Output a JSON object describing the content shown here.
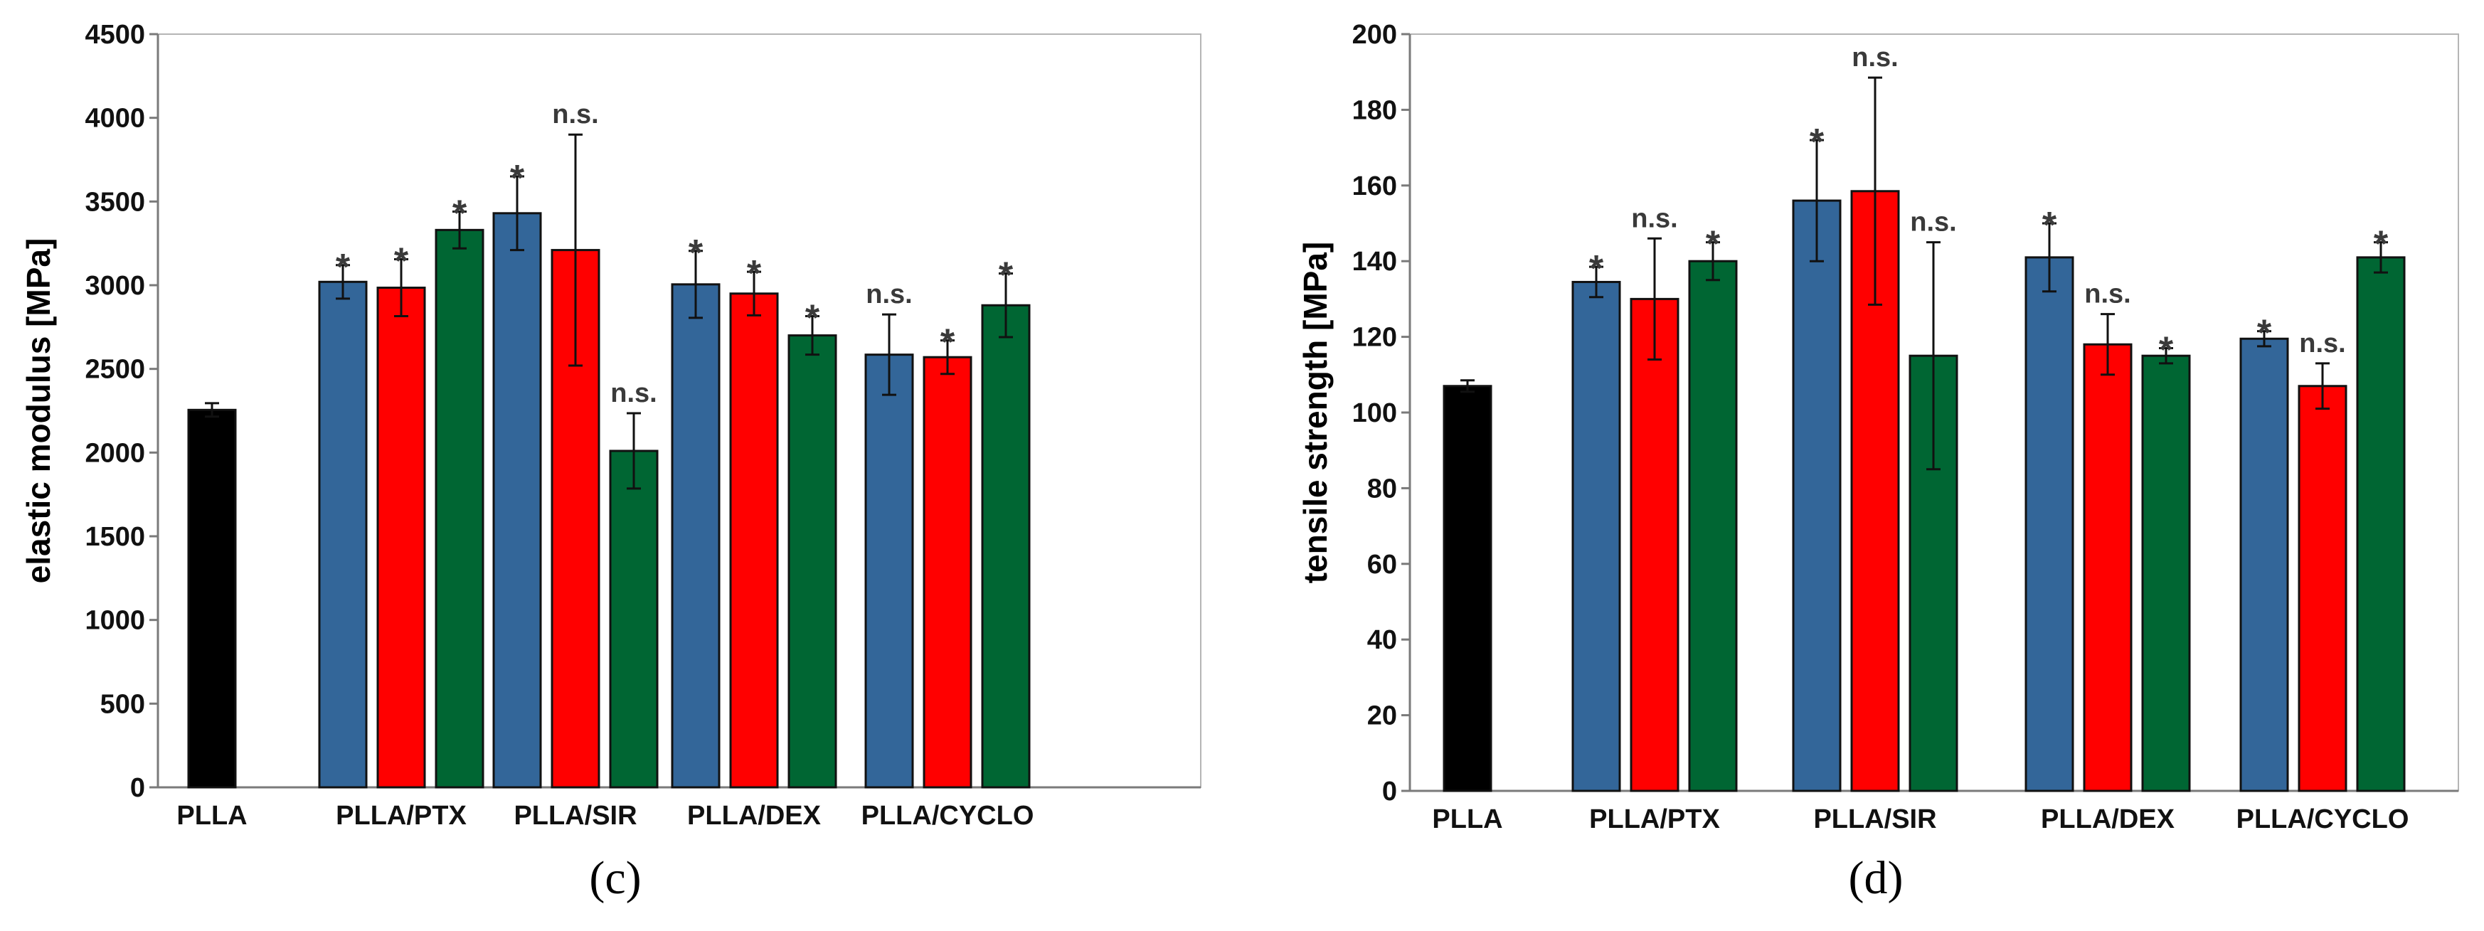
{
  "colors": {
    "PLLA": "#000000",
    "PTX-like blue": "#336699",
    "blue": "#336699",
    "red": "#ff0000",
    "green": "#006633"
  },
  "chart_data": [
    {
      "type": "bar",
      "panel_label": "(c)",
      "ylabel": "elastic modulus [MPa]",
      "ylim": [
        0,
        4500
      ],
      "yticks": [
        0,
        500,
        1000,
        1500,
        2000,
        2500,
        3000,
        3500,
        4000,
        4500
      ],
      "groups": [
        {
          "label": "PLLA",
          "bars": [
            {
              "color": "black",
              "value": 2255,
              "error": 40,
              "sig": ""
            }
          ]
        },
        {
          "label": "PLLA/PTX",
          "bars": [
            {
              "color": "blue",
              "value": 3020,
              "error": 100,
              "sig": "*"
            },
            {
              "color": "red",
              "value": 2985,
              "error": 170,
              "sig": "*"
            },
            {
              "color": "green",
              "value": 3330,
              "error": 110,
              "sig": "*"
            }
          ]
        },
        {
          "label": "PLLA/SIR",
          "bars": [
            {
              "color": "blue",
              "value": 3430,
              "error": 220,
              "sig": "*"
            },
            {
              "color": "red",
              "value": 3210,
              "error": 690,
              "sig": "n.s."
            },
            {
              "color": "green",
              "value": 2010,
              "error": 225,
              "sig": "n.s."
            }
          ]
        },
        {
          "label": "PLLA/DEX",
          "bars": [
            {
              "color": "blue",
              "value": 3005,
              "error": 200,
              "sig": "*"
            },
            {
              "color": "red",
              "value": 2950,
              "error": 130,
              "sig": "*"
            },
            {
              "color": "green",
              "value": 2700,
              "error": 115,
              "sig": "*"
            }
          ]
        },
        {
          "label": "PLLA/CYCLO",
          "bars": [
            {
              "color": "blue",
              "value": 2585,
              "error": 240,
              "sig": "n.s."
            },
            {
              "color": "red",
              "value": 2570,
              "error": 100,
              "sig": "*"
            },
            {
              "color": "green",
              "value": 2880,
              "error": 190,
              "sig": "*"
            }
          ]
        }
      ]
    },
    {
      "type": "bar",
      "panel_label": "(d)",
      "ylabel": "tensile strength [MPa]",
      "ylim": [
        0,
        200
      ],
      "yticks": [
        0,
        20,
        40,
        60,
        80,
        100,
        120,
        140,
        160,
        180,
        200
      ],
      "groups": [
        {
          "label": "PLLA",
          "bars": [
            {
              "color": "black",
              "value": 107,
              "error": 1.5,
              "sig": ""
            }
          ]
        },
        {
          "label": "PLLA/PTX",
          "bars": [
            {
              "color": "blue",
              "value": 134.5,
              "error": 4,
              "sig": "*"
            },
            {
              "color": "red",
              "value": 130,
              "error": 16,
              "sig": "n.s."
            },
            {
              "color": "green",
              "value": 140,
              "error": 5,
              "sig": "*"
            }
          ]
        },
        {
          "label": "PLLA/SIR",
          "bars": [
            {
              "color": "blue",
              "value": 156,
              "error": 16,
              "sig": "*"
            },
            {
              "color": "red",
              "value": 158.5,
              "error": 30,
              "sig": "n.s."
            },
            {
              "color": "green",
              "value": 115,
              "error": 30,
              "sig": "n.s."
            }
          ]
        },
        {
          "label": "PLLA/DEX",
          "bars": [
            {
              "color": "blue",
              "value": 141,
              "error": 9,
              "sig": "*"
            },
            {
              "color": "red",
              "value": 118,
              "error": 8,
              "sig": "n.s."
            },
            {
              "color": "green",
              "value": 115,
              "error": 2,
              "sig": "*"
            }
          ]
        },
        {
          "label": "PLLA/CYCLO",
          "bars": [
            {
              "color": "blue",
              "value": 119.5,
              "error": 2,
              "sig": "*"
            },
            {
              "color": "red",
              "value": 107,
              "error": 6,
              "sig": "n.s."
            },
            {
              "color": "green",
              "value": 141,
              "error": 4,
              "sig": "*"
            }
          ]
        }
      ]
    }
  ]
}
